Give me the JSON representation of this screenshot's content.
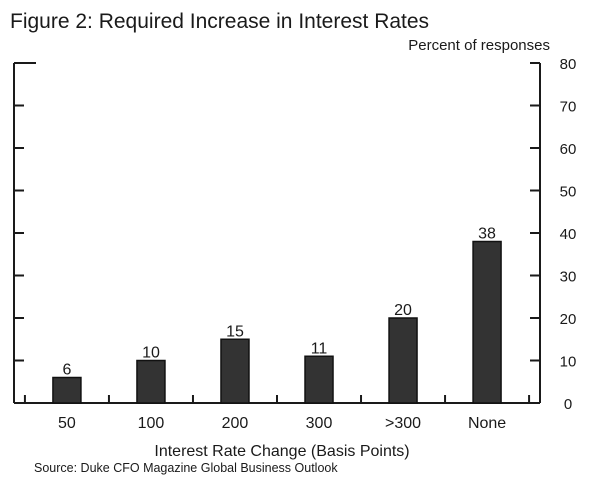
{
  "chart_data": {
    "type": "bar",
    "title": "Figure 2: Required Increase in Interest Rates",
    "unit_label": "Percent of responses",
    "xlabel": "Interest Rate Change (Basis Points)",
    "ylabel": "",
    "categories": [
      "50",
      "100",
      "200",
      "300",
      ">300",
      "None"
    ],
    "values": [
      6,
      10,
      15,
      11,
      20,
      38
    ],
    "data_labels": [
      "6",
      "10",
      "15",
      "11",
      "20",
      "38"
    ],
    "ylim": [
      0,
      80
    ],
    "yticks": [
      0,
      10,
      20,
      30,
      40,
      50,
      60,
      70,
      80
    ],
    "ytick_labels": [
      "0",
      "10",
      "20",
      "30",
      "40",
      "50",
      "60",
      "70",
      "80"
    ],
    "yaxis_side": "right",
    "grid": false,
    "legend": "none",
    "bar_color": "#333333",
    "source": "Source: Duke CFO Magazine Global Business Outlook"
  }
}
